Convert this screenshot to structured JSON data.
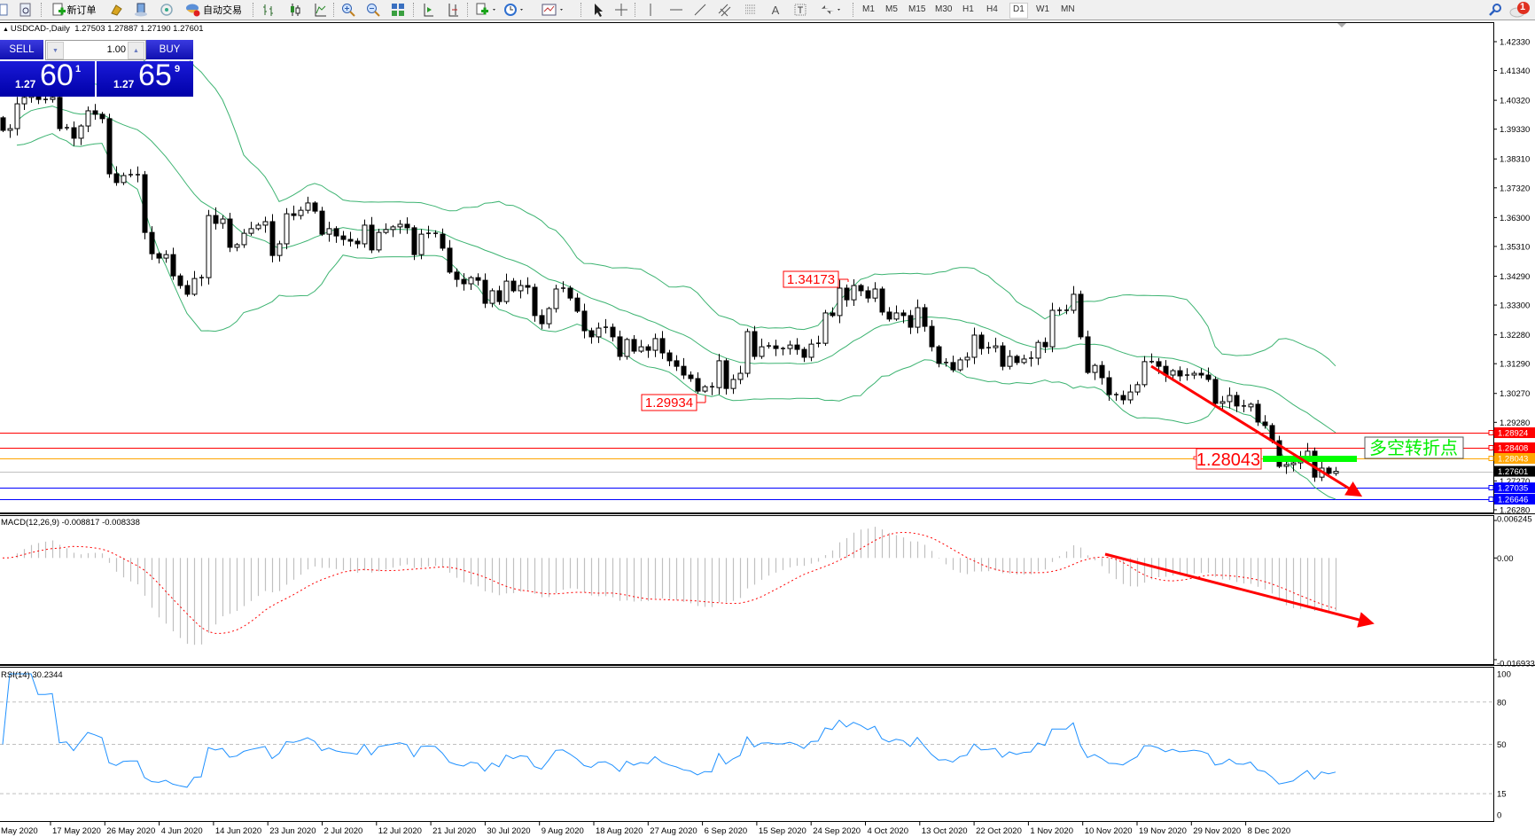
{
  "toolbar": {
    "new_order": "新订单",
    "auto_trading": "自动交易",
    "timeframes": [
      "M1",
      "M5",
      "M15",
      "M30",
      "H1",
      "H4",
      "D1",
      "W1",
      "MN"
    ],
    "active_timeframe": "D1",
    "notification_count": "1"
  },
  "header": {
    "symbol": "USDCAD-,Daily",
    "open": "1.27503",
    "high": "1.27887",
    "low": "1.27190",
    "close": "1.27601"
  },
  "one_click": {
    "sell_label": "SELL",
    "buy_label": "BUY",
    "lot": "1.00",
    "bid": {
      "prefix": "1.27",
      "big": "60",
      "small": "1"
    },
    "ask": {
      "prefix": "1.27",
      "big": "65",
      "small": "9"
    }
  },
  "colors": {
    "bands": "#3cb371",
    "macd_hist": "#c0c0c0",
    "macd_signal": "#ff0000",
    "rsi": "#1e90ff",
    "annotation": "#ff0000",
    "pivot_bar": "#00ff00"
  },
  "chart_data": [
    {
      "type": "candlestick",
      "indicators": [
        "Bollinger Bands"
      ],
      "ylim": [
        1.2628,
        1.4233
      ],
      "first_open": 1.3972,
      "close": [
        1.3929,
        1.3935,
        1.402,
        1.4042,
        1.4057,
        1.4035,
        1.4035,
        1.4042,
        1.3935,
        1.3938,
        1.3902,
        1.3944,
        1.3996,
        1.3984,
        1.3969,
        1.378,
        1.375,
        1.3774,
        1.3777,
        1.3777,
        1.3579,
        1.3506,
        1.3491,
        1.3503,
        1.343,
        1.3397,
        1.3367,
        1.3421,
        1.3424,
        1.3637,
        1.361,
        1.3625,
        1.3528,
        1.3537,
        1.3576,
        1.3592,
        1.3604,
        1.3616,
        1.35,
        1.354,
        1.3643,
        1.3637,
        1.3655,
        1.368,
        1.3652,
        1.3573,
        1.3592,
        1.3567,
        1.3555,
        1.3549,
        1.354,
        1.3604,
        1.3519,
        1.3579,
        1.3589,
        1.3598,
        1.3607,
        1.3595,
        1.3503,
        1.3573,
        1.3576,
        1.3573,
        1.3525,
        1.3443,
        1.3418,
        1.3403,
        1.3424,
        1.3415,
        1.3336,
        1.3379,
        1.3342,
        1.3412,
        1.3379,
        1.3397,
        1.3391,
        1.3294,
        1.3266,
        1.3318,
        1.3385,
        1.3388,
        1.3354,
        1.3309,
        1.3242,
        1.3221,
        1.3251,
        1.3254,
        1.3221,
        1.3154,
        1.3212,
        1.3172,
        1.3187,
        1.3175,
        1.3215,
        1.3166,
        1.3139,
        1.312,
        1.309,
        1.3078,
        1.3035,
        1.305,
        1.3047,
        1.3139,
        1.3044,
        1.3075,
        1.3096,
        1.3239,
        1.3154,
        1.3187,
        1.319,
        1.3181,
        1.3181,
        1.3193,
        1.3178,
        1.3151,
        1.3196,
        1.3199,
        1.3303,
        1.3294,
        1.3388,
        1.3348,
        1.3397,
        1.3379,
        1.3354,
        1.3385,
        1.3306,
        1.3282,
        1.3303,
        1.3294,
        1.3254,
        1.3321,
        1.3257,
        1.3187,
        1.313,
        1.3133,
        1.3108,
        1.3142,
        1.3151,
        1.3227,
        1.3181,
        1.3184,
        1.319,
        1.312,
        1.3154,
        1.3133,
        1.3145,
        1.3148,
        1.3202,
        1.3187,
        1.3312,
        1.3312,
        1.3312,
        1.3367,
        1.3221,
        1.3099,
        1.3123,
        1.3081,
        1.3023,
        1.302,
        1.3005,
        1.3032,
        1.3057,
        1.3136,
        1.3136,
        1.312,
        1.309,
        1.3105,
        1.3087,
        1.309,
        1.3096,
        1.309,
        1.3075,
        1.2993,
        1.2999,
        1.302,
        1.2984,
        1.2981,
        1.299,
        1.2929,
        1.2917,
        1.2865,
        1.2777,
        1.2783,
        1.2789,
        1.281,
        1.2829,
        1.274,
        1.2771,
        1.2753,
        1.27601
      ],
      "price_ticks": [
        "1.42330",
        "1.41340",
        "1.40320",
        "1.39330",
        "1.38310",
        "1.37320",
        "1.36300",
        "1.35310",
        "1.34290",
        "1.33300",
        "1.32280",
        "1.31290",
        "1.30270",
        "1.29280",
        "1.27270",
        "1.26280"
      ],
      "date_labels": [
        "May 2020",
        "17 May 2020",
        "26 May 2020",
        "4 Jun 2020",
        "14 Jun 2020",
        "23 Jun 2020",
        "2 Jul 2020",
        "12 Jul 2020",
        "21 Jul 2020",
        "30 Jul 2020",
        "9 Aug 2020",
        "18 Aug 2020",
        "27 Aug 2020",
        "6 Sep 2020",
        "15 Sep 2020",
        "24 Sep 2020",
        "4 Oct 2020",
        "13 Oct 2020",
        "22 Oct 2020",
        "1 Nov 2020",
        "10 Nov 2020",
        "19 Nov 2020",
        "29 Nov 2020",
        "8 Dec 2020"
      ],
      "hlines": [
        {
          "price": "1.28924",
          "color": "#ff0000",
          "text": "#ffffff"
        },
        {
          "price": "1.28408",
          "color": "#ff0000",
          "text": "#ffffff"
        },
        {
          "price": "1.28043",
          "color": "#ffa500",
          "text": "#ffffff"
        },
        {
          "price": "1.27601",
          "color": "#c0c0c0",
          "label_bg": "#000000",
          "text": "#ffffff"
        },
        {
          "price": "1.27035",
          "color": "#0000ff",
          "text": "#ffffff"
        },
        {
          "price": "1.26646",
          "color": "#0000ff",
          "text": "#ffffff"
        }
      ],
      "annotations": {
        "high_label": "1.34173",
        "low_label": "1.29934",
        "level_label": "1.28043",
        "pivot_text": "多空转折点"
      }
    },
    {
      "type": "bar+line",
      "title": "MACD(12,26,9)",
      "main_value": "-0.008817",
      "signal_value": "-0.008338",
      "ylim": [
        -0.016933,
        0.006245
      ],
      "ticks": [
        "0.006245",
        "0.00",
        "-0.016933"
      ]
    },
    {
      "type": "line",
      "title": "RSI(14)",
      "value": "30.2344",
      "ylim": [
        0,
        100
      ],
      "levels": [
        80,
        50,
        15
      ],
      "ticks": [
        "100",
        "80",
        "50",
        "15",
        "0"
      ]
    }
  ]
}
